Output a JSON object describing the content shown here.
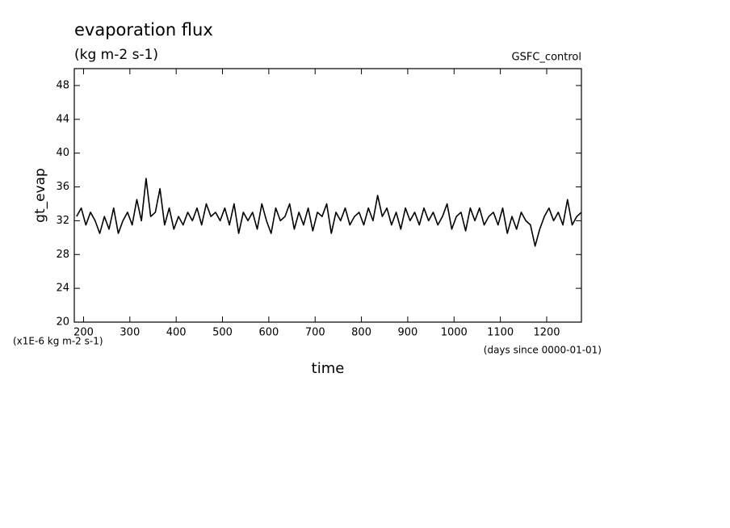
{
  "chart_data": {
    "type": "line",
    "title": "evaporation flux",
    "subtitle": "(kg m-2 s-1)",
    "annotation": "GSFC_control",
    "ylabel": "gt_evap",
    "xlabel": "time",
    "yunit_note": "(x1E-6 kg m-2 s-1)",
    "xunit_note": "(days since 0000-01-01)",
    "color": "#000000",
    "xlim": [
      180,
      1275
    ],
    "ylim": [
      20,
      50
    ],
    "xticks": [
      200,
      300,
      400,
      500,
      600,
      700,
      800,
      900,
      1000,
      1100,
      1200
    ],
    "yticks": [
      20,
      24,
      28,
      32,
      36,
      40,
      44,
      48
    ],
    "grid": false,
    "x": [
      185,
      195,
      205,
      215,
      225,
      235,
      245,
      255,
      265,
      275,
      285,
      295,
      305,
      315,
      325,
      335,
      345,
      355,
      365,
      375,
      385,
      395,
      405,
      415,
      425,
      435,
      445,
      455,
      465,
      475,
      485,
      495,
      505,
      515,
      525,
      535,
      545,
      555,
      565,
      575,
      585,
      595,
      605,
      615,
      625,
      635,
      645,
      655,
      665,
      675,
      685,
      695,
      705,
      715,
      725,
      735,
      745,
      755,
      765,
      775,
      785,
      795,
      805,
      815,
      825,
      835,
      845,
      855,
      865,
      875,
      885,
      895,
      905,
      915,
      925,
      935,
      945,
      955,
      965,
      975,
      985,
      995,
      1005,
      1015,
      1025,
      1035,
      1045,
      1055,
      1065,
      1075,
      1085,
      1095,
      1105,
      1115,
      1125,
      1135,
      1145,
      1155,
      1165,
      1175,
      1185,
      1195,
      1205,
      1215,
      1225,
      1235,
      1245,
      1255,
      1265,
      1275
    ],
    "values": [
      32.5,
      33.5,
      31.5,
      33,
      32,
      30.5,
      32.5,
      31,
      33.5,
      30.5,
      32,
      33,
      31.5,
      34.5,
      32,
      37,
      32.5,
      33,
      35.8,
      31.5,
      33.5,
      31,
      32.5,
      31.5,
      33,
      32,
      33.5,
      31.5,
      34,
      32.5,
      33,
      32,
      33.5,
      31.5,
      34,
      30.5,
      33,
      32,
      33,
      31,
      34,
      32,
      30.5,
      33.5,
      32,
      32.5,
      34,
      31,
      33,
      31.5,
      33.5,
      30.8,
      33,
      32.5,
      34,
      30.5,
      33,
      32,
      33.5,
      31.5,
      32.5,
      33,
      31.5,
      33.5,
      32,
      35,
      32.5,
      33.5,
      31.5,
      33,
      31,
      33.5,
      32,
      33,
      31.5,
      33.5,
      32,
      33,
      31.5,
      32.5,
      34,
      31,
      32.5,
      33,
      30.8,
      33.5,
      32,
      33.5,
      31.5,
      32.5,
      33,
      31.5,
      33.5,
      30.5,
      32.5,
      31,
      33,
      32,
      31.5,
      29,
      31,
      32.5,
      33.5,
      32,
      33,
      31.5,
      34.5,
      31.5,
      32.5,
      33
    ]
  }
}
